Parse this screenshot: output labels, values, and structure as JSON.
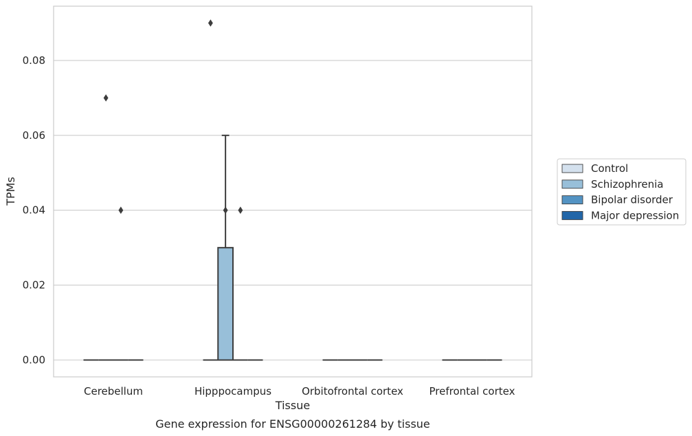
{
  "chart_data": {
    "type": "box",
    "title": "",
    "caption": "Gene expression for ENSG00000261284 by tissue",
    "xlabel": "Tissue",
    "ylabel": "TPMs",
    "ylim": [
      -0.0045,
      0.0945
    ],
    "yticks": [
      "0.00",
      "0.02",
      "0.04",
      "0.06",
      "0.08"
    ],
    "yticks_values": [
      0.0,
      0.02,
      0.04,
      0.06,
      0.08
    ],
    "grid": true,
    "legend_placement": "center-right",
    "categories": [
      "Cerebellum",
      "Hipppocampus",
      "Orbitofrontal cortex",
      "Prefrontal cortex"
    ],
    "series": [
      {
        "name": "Control",
        "color": "#d4e1ee",
        "boxes": [
          {
            "q1": 0,
            "median": 0,
            "q3": 0,
            "whislo": 0,
            "whishi": 0,
            "fliers": []
          },
          {
            "q1": 0,
            "median": 0,
            "q3": 0,
            "whislo": 0,
            "whishi": 0,
            "fliers": [
              0.09
            ]
          },
          {
            "q1": 0,
            "median": 0,
            "q3": 0,
            "whislo": 0,
            "whishi": 0,
            "fliers": []
          },
          {
            "q1": 0,
            "median": 0,
            "q3": 0,
            "whislo": 0,
            "whishi": 0,
            "fliers": []
          }
        ]
      },
      {
        "name": "Schizophrenia",
        "color": "#98bfd9",
        "boxes": [
          {
            "q1": 0,
            "median": 0,
            "q3": 0,
            "whislo": 0,
            "whishi": 0,
            "fliers": [
              0.07
            ]
          },
          {
            "q1": 0,
            "median": 0,
            "q3": 0.03,
            "whislo": 0,
            "whishi": 0.06,
            "fliers": [
              0.04
            ]
          },
          {
            "q1": 0,
            "median": 0,
            "q3": 0,
            "whislo": 0,
            "whishi": 0,
            "fliers": []
          },
          {
            "q1": 0,
            "median": 0,
            "q3": 0,
            "whislo": 0,
            "whishi": 0,
            "fliers": []
          }
        ]
      },
      {
        "name": "Bipolar disorder",
        "color": "#5393c3",
        "boxes": [
          {
            "q1": 0,
            "median": 0,
            "q3": 0,
            "whislo": 0,
            "whishi": 0,
            "fliers": [
              0.04
            ]
          },
          {
            "q1": 0,
            "median": 0,
            "q3": 0,
            "whislo": 0,
            "whishi": 0,
            "fliers": [
              0.04
            ]
          },
          {
            "q1": 0,
            "median": 0,
            "q3": 0,
            "whislo": 0,
            "whishi": 0,
            "fliers": []
          },
          {
            "q1": 0,
            "median": 0,
            "q3": 0,
            "whislo": 0,
            "whishi": 0,
            "fliers": []
          }
        ]
      },
      {
        "name": "Major depression",
        "color": "#2266a8",
        "boxes": [
          {
            "q1": 0,
            "median": 0,
            "q3": 0,
            "whislo": 0,
            "whishi": 0,
            "fliers": []
          },
          {
            "q1": 0,
            "median": 0,
            "q3": 0,
            "whislo": 0,
            "whishi": 0,
            "fliers": []
          },
          {
            "q1": 0,
            "median": 0,
            "q3": 0,
            "whislo": 0,
            "whishi": 0,
            "fliers": []
          },
          {
            "q1": 0,
            "median": 0,
            "q3": 0,
            "whislo": 0,
            "whishi": 0,
            "fliers": []
          }
        ]
      }
    ]
  }
}
